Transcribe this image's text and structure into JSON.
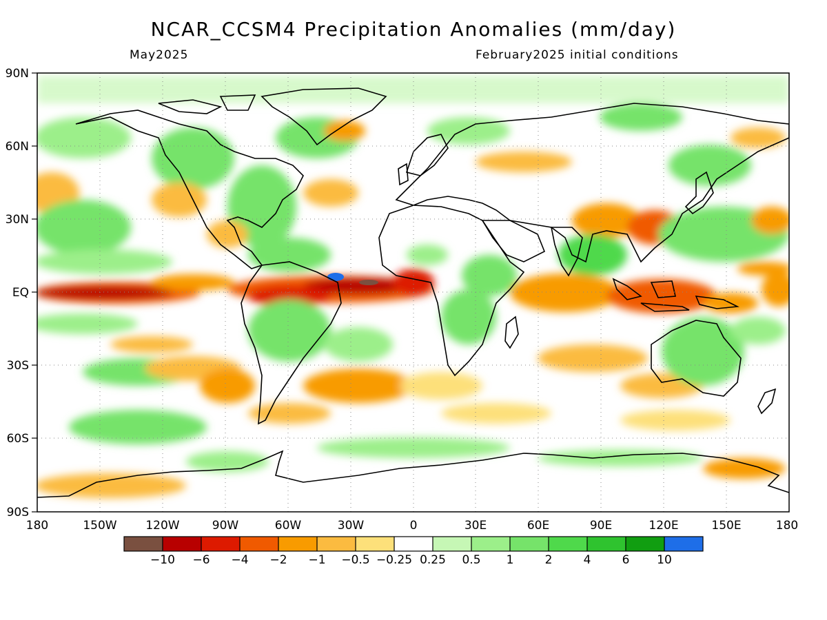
{
  "header": {
    "title": "NCAR_CCSM4 Precipitation Anomalies (mm/day)",
    "valid_month": "May2025",
    "init": "February2025 initial conditions"
  },
  "axes": {
    "lat_labels": [
      "90N",
      "60N",
      "30N",
      "EQ",
      "30S",
      "60S",
      "90S"
    ],
    "lon_labels": [
      "180",
      "150W",
      "120W",
      "90W",
      "60W",
      "30W",
      "0",
      "30E",
      "60E",
      "90E",
      "120E",
      "150E",
      "180"
    ]
  },
  "colors": {
    "dry_extreme": "#7a5040",
    "dry_10": "#b80000",
    "dry_6": "#dd1a00",
    "dry_4": "#f05a00",
    "dry_2": "#f89b00",
    "dry_1": "#fbbb40",
    "dry_05": "#fde07a",
    "neutral": "#ffffff",
    "wet_025": "#c6f7b5",
    "wet_05": "#9cef8a",
    "wet_1": "#76e36a",
    "wet_2": "#4fd94b",
    "wet_4": "#2fc32f",
    "wet_6": "#119e11",
    "wet_extreme": "#1e6ee8"
  },
  "colorbar": {
    "labels": [
      "−10",
      "−6",
      "−4",
      "−2",
      "−1",
      "−0.5",
      "−0.25",
      "0.25",
      "0.5",
      "1",
      "2",
      "4",
      "6",
      "10"
    ]
  }
}
